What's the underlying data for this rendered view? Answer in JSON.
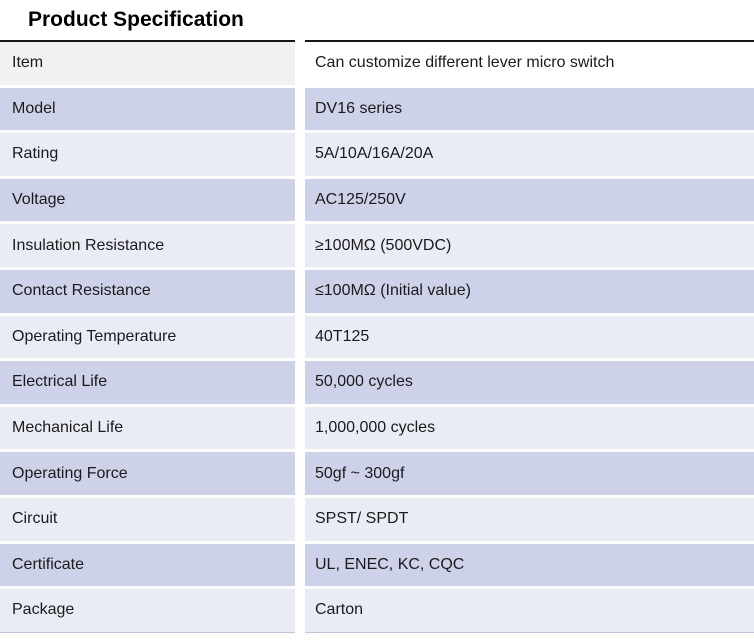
{
  "title": "Product Specification",
  "table": {
    "rows": [
      {
        "key": "Item",
        "value": "Can customize different lever micro switch"
      },
      {
        "key": "Model",
        "value": "DV16 series"
      },
      {
        "key": "Rating",
        "value": "5A/10A/16A/20A"
      },
      {
        "key": "Voltage",
        "value": "AC125/250V"
      },
      {
        "key": "Insulation Resistance",
        "value": "≥100MΩ (500VDC)"
      },
      {
        "key": "Contact Resistance",
        "value": "≤100MΩ (Initial value)"
      },
      {
        "key": "Operating Temperature",
        "value": "40T125"
      },
      {
        "key": "Electrical Life",
        "value": "50,000 cycles"
      },
      {
        "key": "Mechanical Life",
        "value": "1,000,000 cycles"
      },
      {
        "key": "Operating Force",
        "value": "50gf ~ 300gf"
      },
      {
        "key": "Circuit",
        "value": "SPST/ SPDT"
      },
      {
        "key": "Certificate",
        "value": "UL, ENEC, KC, CQC"
      },
      {
        "key": "Package",
        "value": "Carton"
      }
    ]
  },
  "colors": {
    "row_lavender": "#cdd2e8",
    "row_light": "#eaecf5",
    "first_row_key_bg": "#f1f1f1",
    "first_row_value_bg": "#ffffff",
    "top_rule": "#161616"
  }
}
